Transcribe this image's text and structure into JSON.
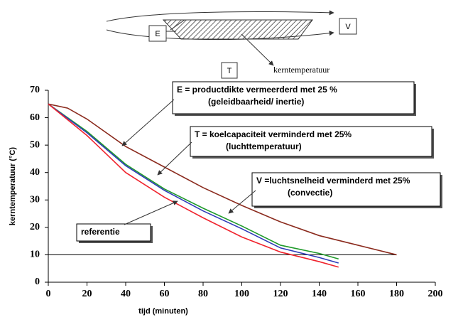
{
  "diagram": {
    "labels": {
      "E": "E",
      "V": "V",
      "T": "T",
      "core": "kerntemperatuur"
    }
  },
  "chart_data": {
    "type": "line",
    "ylabel": "kerntemperatuur (°C)",
    "xlabel": "tijd (minuten)",
    "xlim": [
      0,
      200
    ],
    "xticks": [
      0,
      20,
      40,
      60,
      80,
      100,
      120,
      140,
      160,
      180,
      200
    ],
    "ylim": [
      0,
      70
    ],
    "yticks": [
      0,
      10,
      20,
      30,
      40,
      50,
      60,
      70
    ],
    "reference_line": 10,
    "series": [
      {
        "color": "#8b2b1e",
        "x": [
          0,
          10,
          20,
          40,
          60,
          80,
          100,
          120,
          140,
          160,
          180
        ],
        "values": [
          65,
          63.5,
          59.5,
          49.5,
          42,
          34.5,
          28,
          22,
          17,
          13.5,
          10
        ]
      },
      {
        "color": "#1f9a2a",
        "x": [
          0,
          20,
          40,
          60,
          80,
          100,
          120,
          140,
          150
        ],
        "values": [
          65,
          55,
          43,
          34,
          27,
          20.5,
          13.5,
          10.5,
          8.5
        ]
      },
      {
        "color": "#2e3ab8",
        "x": [
          0,
          20,
          40,
          60,
          80,
          100,
          120,
          140,
          150
        ],
        "values": [
          65,
          54.5,
          42.5,
          33.5,
          26,
          19.5,
          12.5,
          9,
          7
        ]
      },
      {
        "color": "#f0232d",
        "x": [
          0,
          20,
          40,
          60,
          80,
          100,
          120,
          140,
          150
        ],
        "values": [
          65,
          53.5,
          40,
          31,
          23.5,
          16.5,
          11,
          7.5,
          5.5
        ]
      }
    ],
    "annotations": [
      {
        "lines": [
          "E = productdikte vermeerderd met 25 %",
          "(geleidbaarheid/ inertie)"
        ]
      },
      {
        "lines": [
          "T = koelcapaciteit verminderd met  25%",
          "(luchttemperatuur)"
        ]
      },
      {
        "lines": [
          "V =luchtsnelheid verminderd met 25%",
          "(convectie)"
        ]
      },
      {
        "lines": [
          "referentie"
        ]
      }
    ]
  }
}
